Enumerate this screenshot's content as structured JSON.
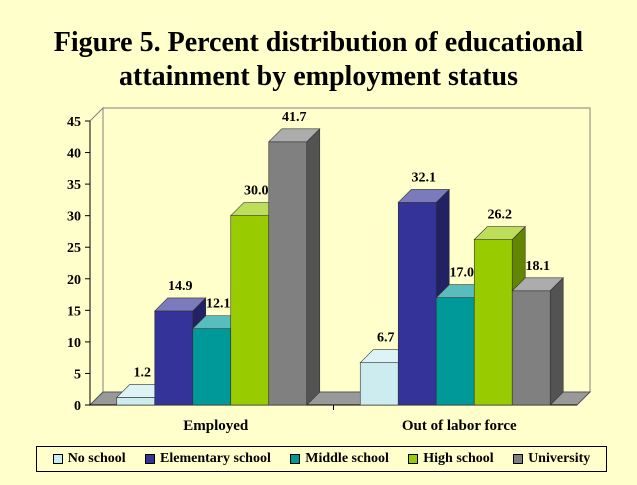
{
  "chart_data": {
    "type": "bar",
    "title": "Figure 5. Percent distribution of educational attainment by employment status",
    "categories": [
      "Employed",
      "Out of labor force"
    ],
    "series": [
      {
        "name": "No school",
        "values": [
          1.2,
          6.7
        ],
        "color": "#ccecf0"
      },
      {
        "name": "Elementary school",
        "values": [
          14.9,
          32.1
        ],
        "color": "#333399"
      },
      {
        "name": "Middle school",
        "values": [
          12.1,
          17.0
        ],
        "color": "#009999"
      },
      {
        "name": "High school",
        "values": [
          30.0,
          26.2
        ],
        "color": "#99cc00"
      },
      {
        "name": "University",
        "values": [
          41.7,
          18.1
        ],
        "color": "#808080"
      }
    ],
    "data_labels": [
      [
        "1.2",
        "14.9",
        "12.1",
        "30.0",
        "41.7"
      ],
      [
        "6.7",
        "32.1",
        "17.0",
        "26.2",
        "18.1"
      ]
    ],
    "y_ticks": [
      "0",
      "5",
      "10",
      "15",
      "20",
      "25",
      "30",
      "35",
      "40",
      "45"
    ],
    "ylim": [
      0,
      45
    ],
    "legend_position": "bottom",
    "grid": false,
    "background_color": "#ffffcc",
    "three_d": true
  }
}
